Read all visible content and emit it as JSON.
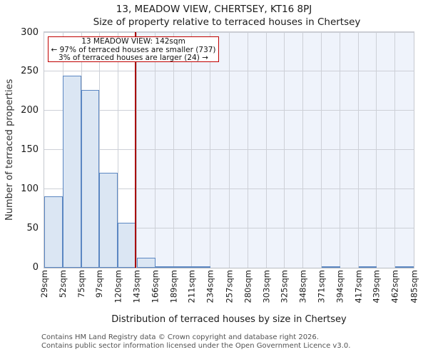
{
  "title": "13, MEADOW VIEW, CHERTSEY, KT16 8PJ",
  "subtitle": "Size of property relative to terraced houses in Chertsey",
  "annotation": {
    "line1": "13 MEADOW VIEW: 142sqm",
    "line2": "← 97% of terraced houses are smaller (737)",
    "line3": "3% of terraced houses are larger (24) →"
  },
  "footer": {
    "line1": "Contains HM Land Registry data © Crown copyright and database right 2026.",
    "line2": "Contains public sector information licensed under the Open Government Licence v3.0."
  },
  "chart_data": {
    "type": "bar",
    "title": "13, MEADOW VIEW, CHERTSEY, KT16 8PJ",
    "subtitle": "Size of property relative to terraced houses in Chertsey",
    "xlabel": "Distribution of terraced houses by size in Chertsey",
    "ylabel": "Number of terraced properties",
    "bin_edges_sqm": [
      29,
      52,
      75,
      97,
      120,
      143,
      166,
      189,
      211,
      234,
      257,
      280,
      303,
      325,
      348,
      371,
      394,
      417,
      439,
      462,
      485
    ],
    "bin_labels": [
      "29sqm",
      "52sqm",
      "75sqm",
      "97sqm",
      "120sqm",
      "143sqm",
      "166sqm",
      "189sqm",
      "211sqm",
      "234sqm",
      "257sqm",
      "280sqm",
      "303sqm",
      "325sqm",
      "348sqm",
      "371sqm",
      "394sqm",
      "417sqm",
      "439sqm",
      "462sqm",
      "485sqm"
    ],
    "values": [
      91,
      245,
      227,
      121,
      57,
      13,
      2,
      1,
      1,
      0,
      0,
      0,
      0,
      0,
      0,
      1,
      0,
      1,
      0,
      1
    ],
    "marker_value_sqm": 142,
    "ylim": [
      0,
      300
    ],
    "yticks": [
      0,
      50,
      100,
      150,
      200,
      250,
      300
    ],
    "grid": true,
    "legend": "none",
    "colors": {
      "bar_fill": "#dbe6f3",
      "bar_stroke": "#5b87c2",
      "marker_line": "#a80000",
      "annotation_border": "#c00000",
      "shade_right": "#eff3fb",
      "grid": "#cdd0d7"
    }
  }
}
